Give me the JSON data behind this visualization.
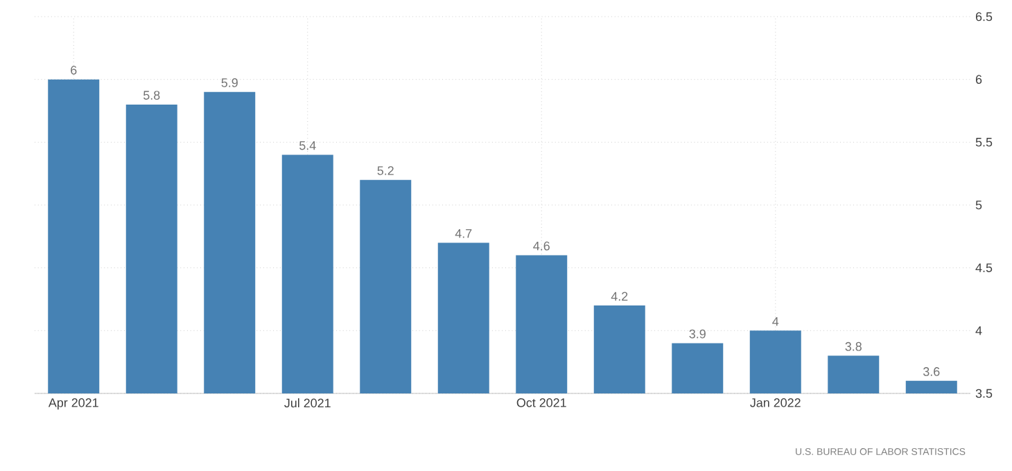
{
  "chart_data": {
    "type": "bar",
    "categories": [
      "Apr 2021",
      null,
      null,
      "Jul 2021",
      null,
      null,
      "Oct 2021",
      null,
      null,
      "Jan 2022",
      null,
      null
    ],
    "values": [
      6,
      5.8,
      5.9,
      5.4,
      5.2,
      4.7,
      4.6,
      4.2,
      3.9,
      4,
      3.8,
      3.6
    ],
    "color": "#4682b4",
    "ylim": [
      3.5,
      6.5
    ],
    "yticks": [
      3.5,
      4,
      4.5,
      5,
      5.5,
      6,
      6.5
    ],
    "grid": true,
    "data_labels": true,
    "annotations": [
      "U.S. BUREAU OF LABOR STATISTICS"
    ]
  }
}
